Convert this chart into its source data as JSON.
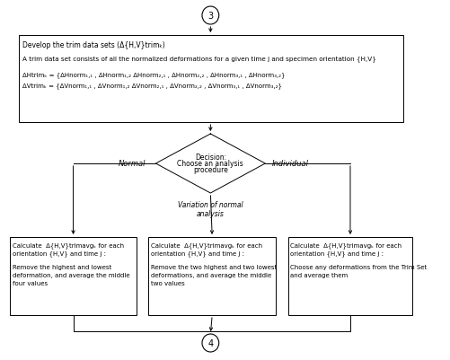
{
  "bg_color": "#ffffff",
  "connector_top_label": "3",
  "connector_bottom_label": "4",
  "top_box_line1": "Develop the trim data sets (Δ{H,V}trimₖ)",
  "top_box_line2": "A trim data set consists of all the normalized deformations for a given time j and specimen orientation {H,V}",
  "top_box_line3": "ΔHtrimₖ = {ΔHnorm₁,₁ , ΔHnorm₁,₂ ΔHnorm₂,₁ , ΔHnorm₂,₂ , ΔHnorm₃,₁ , ΔHnorm₃,₂}",
  "top_box_line4": "ΔVtrimₖ = {ΔVnorm₁,₁ , ΔVnorm₁,₂ ΔVnorm₂,₁ , ΔVnorm₂,₂ , ΔVnorm₃,₁ , ΔVnorm₃,₂}",
  "diamond_line1": "Decision:",
  "diamond_line2": "Choose an analysis",
  "diamond_line3": "procedure",
  "diamond_left_label": "Normal",
  "diamond_right_label": "Individual",
  "diamond_bottom_label1": "Variation of normal",
  "diamond_bottom_label2": "analysis",
  "left_box_line1": "Calculate  Δ{H,V}trimavgₖ for each",
  "left_box_line2": "orientation {H,V} and time j :",
  "left_box_line3": "Remove the highest and lowest",
  "left_box_line4": "deformation, and average the middle",
  "left_box_line5": "four values",
  "mid_box_line1": "Calculate  Δ{H,V}trimavgₖ for each",
  "mid_box_line2": "orientation {H,V} and time j :",
  "mid_box_line3": "Remove the two highest and two lowest",
  "mid_box_line4": "deformations, and average the middle",
  "mid_box_line5": "two values",
  "right_box_line1": "Calculate  Δ{H,V}trimavgₖ for each",
  "right_box_line2": "orientation {H,V} and time j :",
  "right_box_line3": "Choose any deformations from the Trim Set",
  "right_box_line4": "and average them"
}
